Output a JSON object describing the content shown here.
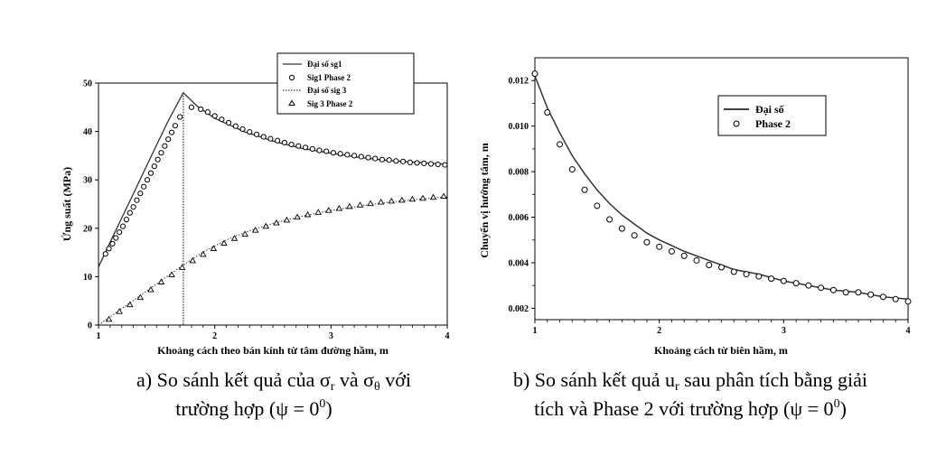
{
  "chart_data": [
    {
      "type": "line",
      "x_ticks": [
        "1",
        "2",
        "3",
        "4"
      ],
      "y_ticks": [
        "0",
        "10",
        "20",
        "30",
        "40",
        "50"
      ],
      "xlim": [
        1,
        4
      ],
      "ylim": [
        0,
        50
      ],
      "xlabel": "Khoảng cách theo bán kính từ tâm đường hầm, m",
      "ylabel": "Ứng suất (MPa)",
      "legend": [
        "Đại số sg1",
        "Sig1 Phase 2",
        "Đại số sig 3",
        "Sig 3 Phase 2"
      ],
      "vline_x": 1.73,
      "series": [
        {
          "name": "Đại số sg1",
          "style": "solid",
          "x": [
            1.0,
            1.1,
            1.2,
            1.3,
            1.4,
            1.5,
            1.6,
            1.73,
            1.85,
            2.0,
            2.25,
            2.5,
            2.75,
            3.0,
            3.25,
            3.5,
            3.75,
            4.0
          ],
          "y": [
            12.0,
            17.1,
            22.1,
            27.1,
            32.2,
            37.2,
            42.2,
            48.0,
            45.2,
            42.7,
            40.0,
            38.0,
            36.5,
            35.5,
            34.6,
            34.0,
            33.6,
            33.2
          ]
        },
        {
          "name": "Sig1 Phase 2",
          "style": "circle",
          "x": [
            1.06,
            1.09,
            1.12,
            1.15,
            1.18,
            1.21,
            1.24,
            1.27,
            1.3,
            1.33,
            1.36,
            1.39,
            1.42,
            1.45,
            1.48,
            1.51,
            1.54,
            1.57,
            1.6,
            1.63,
            1.66,
            1.7,
            1.8,
            1.88,
            1.94,
            2.0,
            2.06,
            2.12,
            2.18,
            2.24,
            2.3,
            2.36,
            2.42,
            2.48,
            2.54,
            2.6,
            2.66,
            2.72,
            2.78,
            2.84,
            2.9,
            2.96,
            3.02,
            3.08,
            3.14,
            3.2,
            3.26,
            3.32,
            3.38,
            3.44,
            3.5,
            3.56,
            3.62,
            3.68,
            3.74,
            3.8,
            3.86,
            3.92,
            3.98
          ],
          "y": [
            14.7,
            15.8,
            16.8,
            18.0,
            19.2,
            20.4,
            21.8,
            23.2,
            24.4,
            25.8,
            27.2,
            28.6,
            30.0,
            31.4,
            32.8,
            34.2,
            35.6,
            37.0,
            38.4,
            39.8,
            41.2,
            43.0,
            45.0,
            44.6,
            44.0,
            43.2,
            42.5,
            41.8,
            41.1,
            40.5,
            39.9,
            39.4,
            38.9,
            38.5,
            38.1,
            37.7,
            37.3,
            37.0,
            36.7,
            36.4,
            36.1,
            35.9,
            35.6,
            35.4,
            35.2,
            35.0,
            34.8,
            34.6,
            34.4,
            34.2,
            34.1,
            33.9,
            33.8,
            33.6,
            33.5,
            33.4,
            33.3,
            33.2,
            33.1
          ]
        },
        {
          "name": "Đại số sig 3",
          "style": "dotted",
          "x": [
            1.0,
            1.2,
            1.4,
            1.6,
            1.73,
            1.9,
            2.1,
            2.3,
            2.5,
            2.75,
            3.0,
            3.25,
            3.5,
            3.75,
            4.0
          ],
          "y": [
            0.0,
            3.4,
            6.8,
            10.2,
            12.4,
            15.1,
            17.6,
            19.5,
            21.0,
            22.5,
            23.7,
            24.6,
            25.4,
            26.0,
            26.5
          ]
        },
        {
          "name": "Sig 3 Phase 2",
          "style": "triangle",
          "x": [
            1.09,
            1.18,
            1.27,
            1.36,
            1.45,
            1.54,
            1.63,
            1.72,
            1.81,
            1.9,
            1.99,
            2.08,
            2.17,
            2.26,
            2.35,
            2.44,
            2.53,
            2.62,
            2.71,
            2.8,
            2.89,
            2.98,
            3.07,
            3.16,
            3.25,
            3.34,
            3.43,
            3.52,
            3.61,
            3.7,
            3.79,
            3.88,
            3.97
          ],
          "y": [
            1.2,
            2.8,
            4.2,
            5.7,
            7.3,
            8.9,
            10.4,
            11.9,
            13.3,
            14.6,
            15.8,
            16.9,
            17.9,
            18.8,
            19.6,
            20.4,
            21.1,
            21.7,
            22.3,
            22.8,
            23.3,
            23.7,
            24.1,
            24.5,
            24.8,
            25.1,
            25.4,
            25.6,
            25.8,
            26.0,
            26.2,
            26.4,
            26.6
          ]
        }
      ]
    },
    {
      "type": "line",
      "x_ticks": [
        "1",
        "2",
        "3",
        "4"
      ],
      "y_ticks": [
        "0.002",
        "0.004",
        "0.006",
        "0.008",
        "0.010",
        "0.012"
      ],
      "xlim": [
        1,
        4
      ],
      "ylim": [
        0.0015,
        0.013
      ],
      "xlabel": "Khoảng cách từ biên hầm, m",
      "ylabel": "Chuyển vị hướng tâm, m",
      "legend": [
        "Đại số",
        "Phase 2"
      ],
      "series": [
        {
          "name": "Đại số",
          "style": "solid",
          "x": [
            1.0,
            1.1,
            1.2,
            1.3,
            1.4,
            1.5,
            1.6,
            1.7,
            1.8,
            1.9,
            2.0,
            2.2,
            2.4,
            2.6,
            2.8,
            3.0,
            3.2,
            3.4,
            3.6,
            3.8,
            4.0
          ],
          "y": [
            0.0122,
            0.0108,
            0.0097,
            0.0087,
            0.0079,
            0.0072,
            0.0066,
            0.0061,
            0.0057,
            0.0053,
            0.005,
            0.0045,
            0.0041,
            0.0037,
            0.0035,
            0.0032,
            0.003,
            0.0028,
            0.0027,
            0.0025,
            0.0024
          ]
        },
        {
          "name": "Phase 2",
          "style": "circle",
          "x": [
            1.0,
            1.1,
            1.2,
            1.3,
            1.4,
            1.5,
            1.6,
            1.7,
            1.8,
            1.9,
            2.0,
            2.1,
            2.2,
            2.3,
            2.4,
            2.5,
            2.6,
            2.7,
            2.8,
            2.9,
            3.0,
            3.1,
            3.2,
            3.3,
            3.4,
            3.5,
            3.6,
            3.7,
            3.8,
            3.9,
            4.0
          ],
          "y": [
            0.0123,
            0.0106,
            0.0092,
            0.0081,
            0.0072,
            0.0065,
            0.0059,
            0.0055,
            0.0052,
            0.0049,
            0.0047,
            0.0045,
            0.0043,
            0.0041,
            0.0039,
            0.0038,
            0.0036,
            0.0035,
            0.0034,
            0.0033,
            0.0032,
            0.0031,
            0.003,
            0.0029,
            0.0028,
            0.0027,
            0.0027,
            0.0026,
            0.0025,
            0.0024,
            0.0023
          ]
        }
      ]
    }
  ],
  "captions": {
    "a_line1": "a) So sánh kết quả của σ",
    "a_sub1": "r",
    "a_mid": " và σ",
    "a_sub2": "θ",
    "a_end": " với",
    "a_line2": "trường hợp (ψ = 0",
    "a_sup": "0",
    "a_close": ")",
    "b_line1a": "b) So sánh kết quả u",
    "b_sub": "r",
    "b_line1b": " sau phân tích bằng giải",
    "b_line2": "tích và Phase 2 với trường hợp (ψ = 0",
    "b_sup": "0",
    "b_close": ")"
  }
}
